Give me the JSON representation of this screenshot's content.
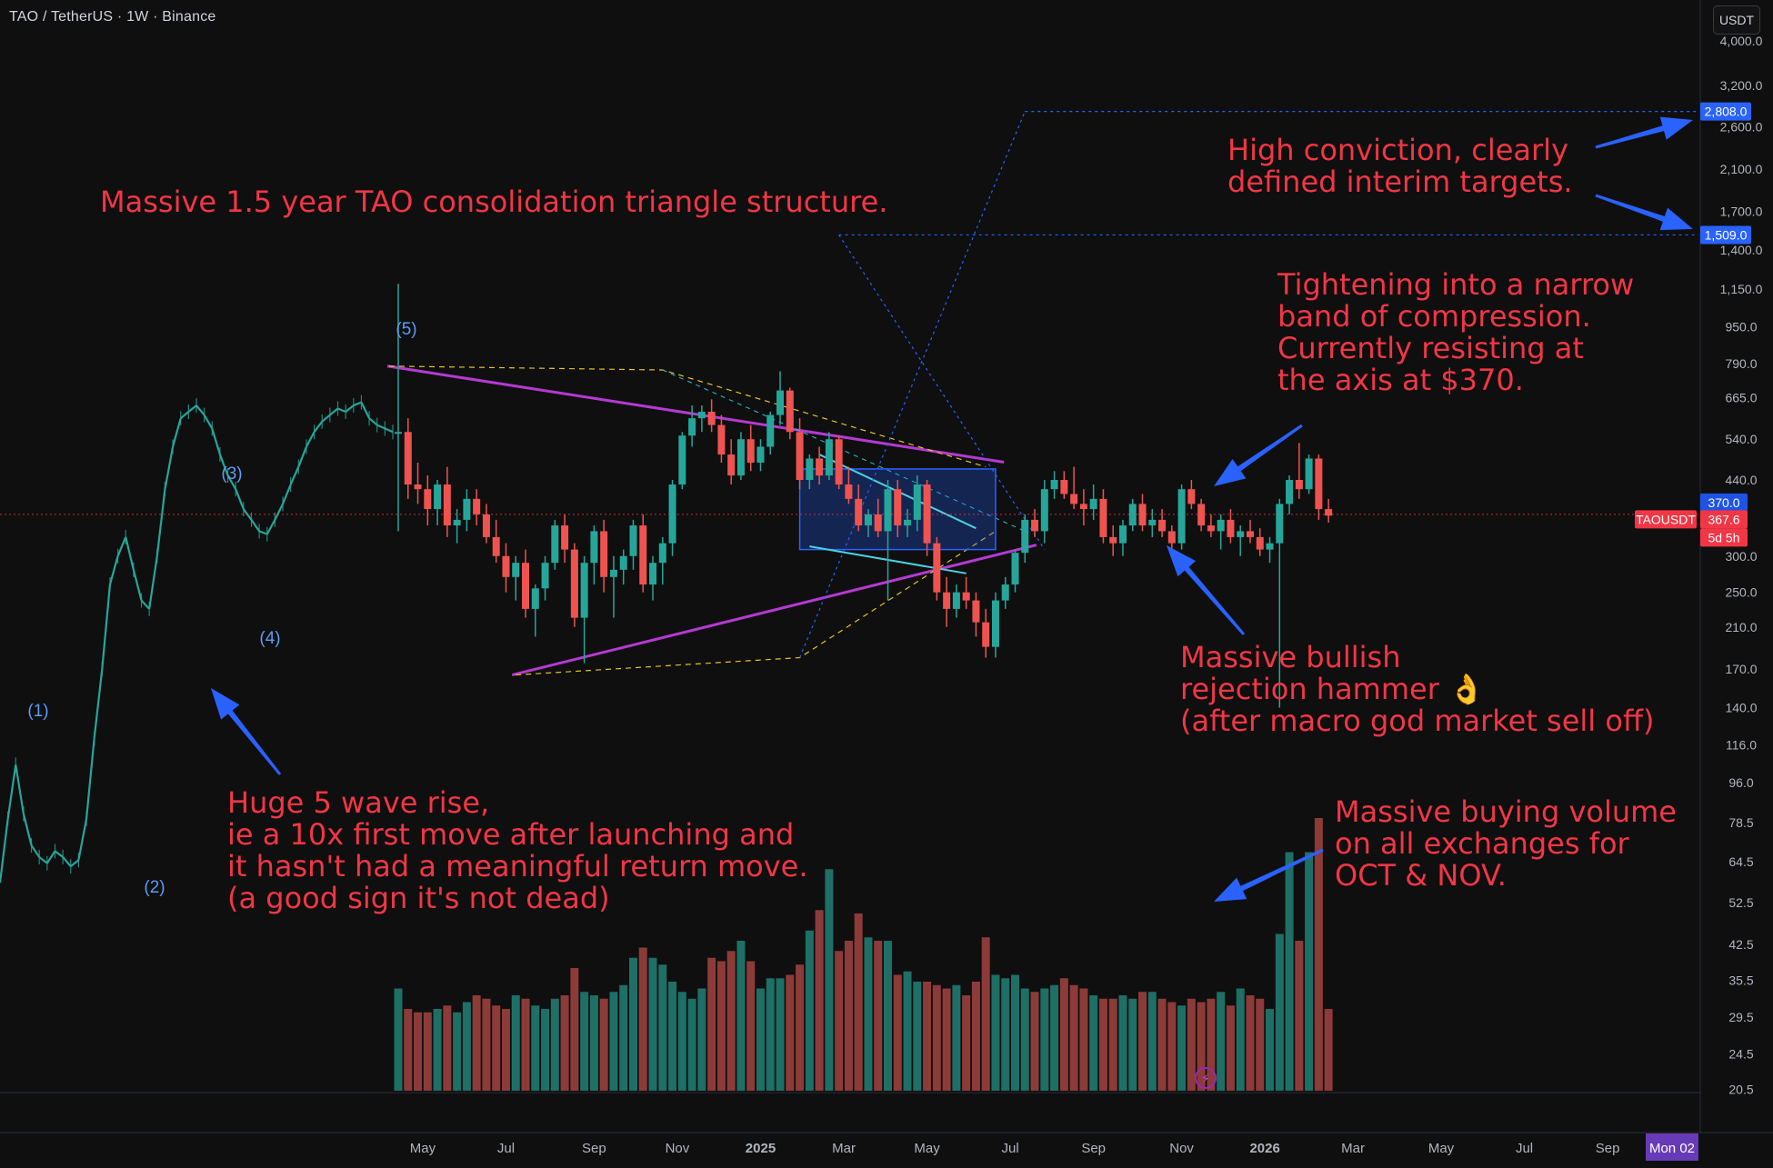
{
  "header": {
    "symbol_title": "TAO / TetherUS · 1W · Binance",
    "currency_button": "USDT"
  },
  "colors": {
    "background": "#0f0f0f",
    "bull": "#26a69a",
    "bear": "#ef5350",
    "vol_bull": "#1e6f66",
    "vol_bear": "#8c3b38",
    "triangle": "#b53ad2",
    "annotation": "#f23645",
    "arrow": "#2962ff",
    "wave_label": "#5b9cf6",
    "price_tag": "#f23645",
    "target_tag": "#2962ff"
  },
  "annotations": [
    {
      "text": "Massive 1.5 year TAO consolidation triangle structure."
    },
    {
      "text": "High conviction, clearly\ndefined interim targets."
    },
    {
      "text": "Tightening into a narrow\nband of compression.\nCurrently resisting at\nthe axis at $370."
    },
    {
      "text": "Massive bullish\nrejection hammer 👌\n(after macro god market sell off)"
    },
    {
      "text": "Huge 5 wave rise,\nie a 10x first move after launching and\nit hasn't had a meaningful return move.\n(a good sign it's not dead)"
    },
    {
      "text": "Massive buying volume\non all exchanges for\nOCT & NOV."
    }
  ],
  "chart_data": {
    "type": "candlestick",
    "symbol": "TAOUSDT",
    "interval": "1W",
    "exchange": "Binance",
    "y_scale": "log",
    "ylim": [
      20,
      4000
    ],
    "y_ticks": [
      "4,000.0",
      "3,200.0",
      "2,600.0",
      "2,100.0",
      "1,700.0",
      "1,400.0",
      "1,150.0",
      "950.0",
      "790.0",
      "665.0",
      "540.0",
      "440.0",
      "300.0",
      "250.0",
      "210.0",
      "170.0",
      "140.0",
      "116.0",
      "96.0",
      "78.5",
      "64.5",
      "52.5",
      "42.5",
      "35.5",
      "29.5",
      "24.5",
      "20.5"
    ],
    "x_ticks": [
      "May",
      "Jul",
      "Sep",
      "Nov",
      "2025",
      "Mar",
      "May",
      "Jul",
      "Sep",
      "Nov",
      "2026",
      "Mar",
      "May",
      "Jul",
      "Sep"
    ],
    "current_date_tag": "Mon 02",
    "price_tags": {
      "resistance": "370.0",
      "last_price": "367.6",
      "countdown": "5d 5h",
      "symbol_label": "TAOUSDT",
      "target_high": "2,808.0",
      "target_low": "1,509.0"
    },
    "wave_labels": [
      "(1)",
      "(2)",
      "(3)",
      "(4)",
      "(5)"
    ],
    "price_path": {
      "t": [
        0,
        0.02,
        0.04,
        0.06,
        0.08,
        0.1,
        0.12,
        0.14,
        0.16,
        0.18,
        0.2,
        0.22,
        0.24,
        0.26,
        0.28,
        0.3,
        0.32,
        0.34,
        0.36,
        0.38,
        0.4,
        0.42,
        0.44,
        0.46,
        0.48,
        0.5,
        0.52,
        0.54,
        0.56,
        0.58,
        0.6,
        0.62,
        0.64,
        0.66,
        0.68,
        0.7,
        0.72,
        0.74,
        0.76,
        0.78,
        0.8,
        0.82,
        0.84,
        0.86,
        0.88,
        0.9,
        0.92,
        0.94,
        0.96,
        0.98,
        1
      ],
      "close": [
        58,
        80,
        105,
        82,
        70,
        66,
        64,
        68,
        66,
        63,
        65,
        80,
        120,
        170,
        260,
        300,
        330,
        280,
        240,
        230,
        300,
        420,
        520,
        600,
        620,
        640,
        610,
        570,
        500,
        450,
        420,
        380,
        360,
        340,
        335,
        360,
        390,
        430,
        470,
        520,
        560,
        590,
        610,
        630,
        620,
        640,
        650,
        600,
        580,
        570,
        560
      ]
    },
    "candles": [
      {
        "o": 560,
        "h": 1180,
        "l": 340,
        "c": 560
      },
      {
        "o": 560,
        "h": 600,
        "l": 400,
        "c": 430
      },
      {
        "o": 430,
        "h": 480,
        "l": 390,
        "c": 420
      },
      {
        "o": 420,
        "h": 450,
        "l": 350,
        "c": 380
      },
      {
        "o": 380,
        "h": 440,
        "l": 350,
        "c": 430
      },
      {
        "o": 430,
        "h": 470,
        "l": 330,
        "c": 350
      },
      {
        "o": 350,
        "h": 380,
        "l": 320,
        "c": 360
      },
      {
        "o": 360,
        "h": 420,
        "l": 340,
        "c": 400
      },
      {
        "o": 400,
        "h": 420,
        "l": 350,
        "c": 370
      },
      {
        "o": 370,
        "h": 390,
        "l": 320,
        "c": 330
      },
      {
        "o": 330,
        "h": 360,
        "l": 290,
        "c": 300
      },
      {
        "o": 300,
        "h": 320,
        "l": 250,
        "c": 270
      },
      {
        "o": 270,
        "h": 300,
        "l": 240,
        "c": 290
      },
      {
        "o": 290,
        "h": 310,
        "l": 220,
        "c": 230
      },
      {
        "o": 230,
        "h": 260,
        "l": 200,
        "c": 255
      },
      {
        "o": 255,
        "h": 300,
        "l": 240,
        "c": 290
      },
      {
        "o": 290,
        "h": 360,
        "l": 280,
        "c": 350
      },
      {
        "o": 350,
        "h": 370,
        "l": 290,
        "c": 310
      },
      {
        "o": 310,
        "h": 320,
        "l": 210,
        "c": 220
      },
      {
        "o": 220,
        "h": 300,
        "l": 175,
        "c": 290
      },
      {
        "o": 290,
        "h": 350,
        "l": 260,
        "c": 340
      },
      {
        "o": 340,
        "h": 360,
        "l": 250,
        "c": 270
      },
      {
        "o": 270,
        "h": 300,
        "l": 220,
        "c": 280
      },
      {
        "o": 280,
        "h": 310,
        "l": 260,
        "c": 300
      },
      {
        "o": 300,
        "h": 360,
        "l": 280,
        "c": 350
      },
      {
        "o": 350,
        "h": 370,
        "l": 250,
        "c": 260
      },
      {
        "o": 260,
        "h": 300,
        "l": 240,
        "c": 290
      },
      {
        "o": 290,
        "h": 330,
        "l": 260,
        "c": 320
      },
      {
        "o": 320,
        "h": 440,
        "l": 300,
        "c": 430
      },
      {
        "o": 430,
        "h": 560,
        "l": 420,
        "c": 550
      },
      {
        "o": 550,
        "h": 640,
        "l": 520,
        "c": 600
      },
      {
        "o": 600,
        "h": 640,
        "l": 560,
        "c": 620
      },
      {
        "o": 620,
        "h": 660,
        "l": 560,
        "c": 580
      },
      {
        "o": 580,
        "h": 610,
        "l": 480,
        "c": 500
      },
      {
        "o": 500,
        "h": 540,
        "l": 430,
        "c": 450
      },
      {
        "o": 450,
        "h": 560,
        "l": 440,
        "c": 540
      },
      {
        "o": 540,
        "h": 580,
        "l": 460,
        "c": 480
      },
      {
        "o": 480,
        "h": 540,
        "l": 460,
        "c": 520
      },
      {
        "o": 520,
        "h": 620,
        "l": 500,
        "c": 610
      },
      {
        "o": 610,
        "h": 760,
        "l": 580,
        "c": 690
      },
      {
        "o": 690,
        "h": 700,
        "l": 540,
        "c": 560
      },
      {
        "o": 560,
        "h": 600,
        "l": 420,
        "c": 440
      },
      {
        "o": 440,
        "h": 500,
        "l": 420,
        "c": 490
      },
      {
        "o": 490,
        "h": 520,
        "l": 430,
        "c": 450
      },
      {
        "o": 450,
        "h": 560,
        "l": 440,
        "c": 540
      },
      {
        "o": 540,
        "h": 550,
        "l": 420,
        "c": 430
      },
      {
        "o": 430,
        "h": 470,
        "l": 390,
        "c": 400
      },
      {
        "o": 400,
        "h": 430,
        "l": 340,
        "c": 350
      },
      {
        "o": 350,
        "h": 380,
        "l": 330,
        "c": 370
      },
      {
        "o": 370,
        "h": 400,
        "l": 330,
        "c": 340
      },
      {
        "o": 340,
        "h": 440,
        "l": 240,
        "c": 420
      },
      {
        "o": 420,
        "h": 440,
        "l": 330,
        "c": 350
      },
      {
        "o": 350,
        "h": 380,
        "l": 330,
        "c": 360
      },
      {
        "o": 360,
        "h": 450,
        "l": 340,
        "c": 430
      },
      {
        "o": 430,
        "h": 440,
        "l": 300,
        "c": 320
      },
      {
        "o": 320,
        "h": 330,
        "l": 240,
        "c": 250
      },
      {
        "o": 250,
        "h": 270,
        "l": 210,
        "c": 230
      },
      {
        "o": 230,
        "h": 260,
        "l": 220,
        "c": 250
      },
      {
        "o": 250,
        "h": 270,
        "l": 230,
        "c": 240
      },
      {
        "o": 240,
        "h": 250,
        "l": 200,
        "c": 215
      },
      {
        "o": 215,
        "h": 230,
        "l": 180,
        "c": 190
      },
      {
        "o": 190,
        "h": 250,
        "l": 180,
        "c": 240
      },
      {
        "o": 240,
        "h": 270,
        "l": 230,
        "c": 260
      },
      {
        "o": 260,
        "h": 310,
        "l": 250,
        "c": 305
      },
      {
        "o": 305,
        "h": 370,
        "l": 290,
        "c": 360
      },
      {
        "o": 360,
        "h": 380,
        "l": 330,
        "c": 340
      },
      {
        "o": 340,
        "h": 440,
        "l": 320,
        "c": 420
      },
      {
        "o": 420,
        "h": 460,
        "l": 400,
        "c": 440
      },
      {
        "o": 440,
        "h": 460,
        "l": 400,
        "c": 410
      },
      {
        "o": 410,
        "h": 470,
        "l": 380,
        "c": 390
      },
      {
        "o": 390,
        "h": 420,
        "l": 350,
        "c": 380
      },
      {
        "o": 380,
        "h": 430,
        "l": 360,
        "c": 400
      },
      {
        "o": 400,
        "h": 420,
        "l": 320,
        "c": 330
      },
      {
        "o": 330,
        "h": 350,
        "l": 300,
        "c": 320
      },
      {
        "o": 320,
        "h": 360,
        "l": 300,
        "c": 350
      },
      {
        "o": 350,
        "h": 400,
        "l": 340,
        "c": 390
      },
      {
        "o": 390,
        "h": 410,
        "l": 340,
        "c": 350
      },
      {
        "o": 350,
        "h": 380,
        "l": 330,
        "c": 360
      },
      {
        "o": 360,
        "h": 380,
        "l": 330,
        "c": 340
      },
      {
        "o": 340,
        "h": 350,
        "l": 310,
        "c": 320
      },
      {
        "o": 320,
        "h": 430,
        "l": 310,
        "c": 420
      },
      {
        "o": 420,
        "h": 440,
        "l": 380,
        "c": 390
      },
      {
        "o": 390,
        "h": 400,
        "l": 340,
        "c": 350
      },
      {
        "o": 350,
        "h": 370,
        "l": 330,
        "c": 340
      },
      {
        "o": 340,
        "h": 370,
        "l": 310,
        "c": 360
      },
      {
        "o": 360,
        "h": 380,
        "l": 320,
        "c": 330
      },
      {
        "o": 330,
        "h": 350,
        "l": 300,
        "c": 340
      },
      {
        "o": 340,
        "h": 360,
        "l": 320,
        "c": 330
      },
      {
        "o": 330,
        "h": 345,
        "l": 300,
        "c": 310
      },
      {
        "o": 310,
        "h": 330,
        "l": 290,
        "c": 320
      },
      {
        "o": 320,
        "h": 400,
        "l": 140,
        "c": 390
      },
      {
        "o": 390,
        "h": 450,
        "l": 370,
        "c": 440
      },
      {
        "o": 440,
        "h": 530,
        "l": 400,
        "c": 420
      },
      {
        "o": 420,
        "h": 500,
        "l": 410,
        "c": 490
      },
      {
        "o": 490,
        "h": 500,
        "l": 360,
        "c": 380
      },
      {
        "o": 380,
        "h": 400,
        "l": 355,
        "c": 367.6
      }
    ],
    "volume": [
      30,
      24,
      23,
      23,
      24,
      25,
      23,
      26,
      28,
      27,
      25,
      24,
      28,
      27,
      25,
      24,
      27,
      28,
      36,
      29,
      28,
      27,
      29,
      31,
      39,
      42,
      39,
      37,
      32,
      29,
      27,
      30,
      39,
      38,
      41,
      44,
      38,
      30,
      33,
      33,
      34,
      37,
      47,
      53,
      65,
      41,
      44,
      52,
      45,
      44,
      44,
      34,
      35,
      32,
      32,
      31,
      30,
      31,
      28,
      32,
      45,
      34,
      33,
      34,
      30,
      29,
      30,
      31,
      33,
      31,
      30,
      28,
      27,
      27,
      28,
      27,
      29,
      29,
      27,
      26,
      25,
      27,
      26,
      27,
      29,
      25,
      30,
      28,
      27,
      24,
      46,
      70,
      44,
      70,
      80,
      24
    ],
    "levels": {
      "resistance": 370,
      "target_1": 1509,
      "target_2": 2808
    },
    "x_range_weeks": [
      -2,
      128
    ],
    "date_ticks_weeks": [
      2.5,
      11,
      20,
      28.5,
      37,
      45.5,
      54,
      62.5,
      71,
      80,
      88.5,
      97.5,
      106.5,
      115,
      123.5
    ],
    "triangle_upper": {
      "from": {
        "w": 0,
        "p": 780
      },
      "to": {
        "w": 60,
        "p": 490
      }
    },
    "triangle_lower": {
      "from": {
        "w": 12,
        "p": 165
      },
      "to": {
        "w": 61,
        "p": 310
      }
    },
    "box": {
      "w_from": 41,
      "w_to": 61,
      "p_from": 310,
      "p_to": 465
    }
  }
}
